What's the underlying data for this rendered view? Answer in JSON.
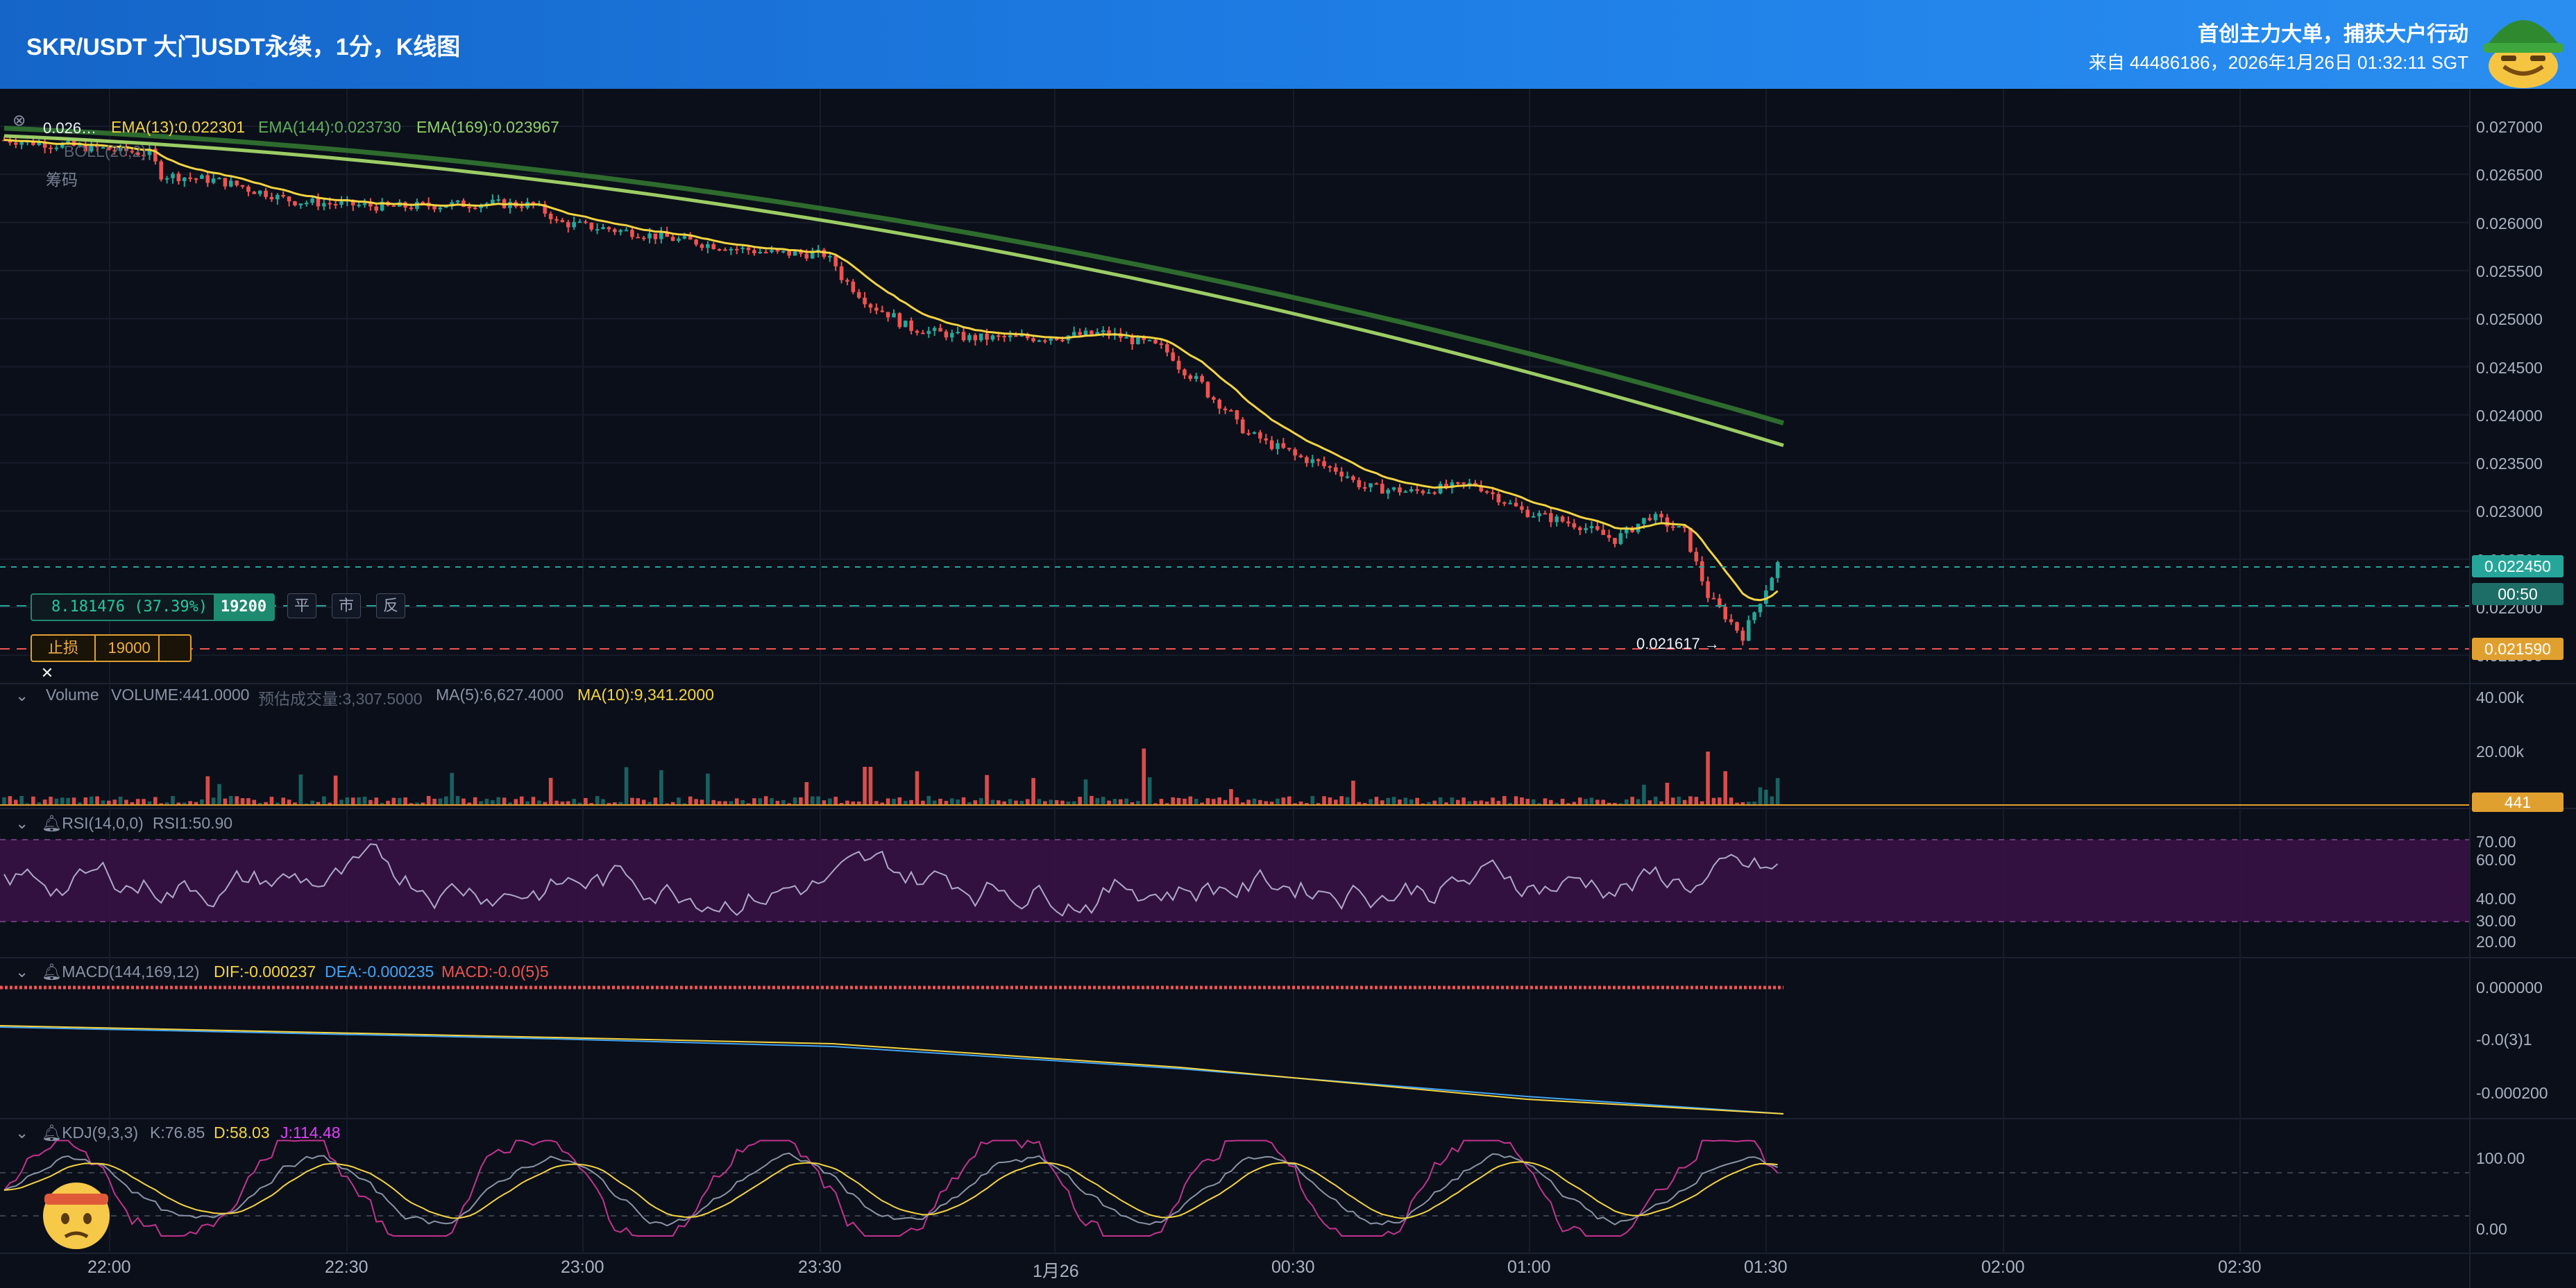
{
  "header": {
    "title": "SKR/USDT 大门USDT永续，1分，K线图",
    "tagline": "首创主力大单，捕获大户行动",
    "source": "来自 44486186，2026年1月26日 01:32:11 SGT"
  },
  "main_panel": {
    "ema_label": "EMA(13):0.022301",
    "ema144_label": "EMA(144):0.023730",
    "ema169_label": "EMA(169):0.023967",
    "boll_label": "BOLL(20,2)",
    "chips_label": "筹码",
    "last_price_tag": "0.022450",
    "countdown_tag": "00:50",
    "stoploss_price_tag": "0.021590",
    "low_marker": "0.021617",
    "high_marker": "0.026…",
    "price_axis": [
      "0.027000",
      "0.026500",
      "0.026000",
      "0.025500",
      "0.025000",
      "0.024500",
      "0.024000",
      "0.023500",
      "0.023000",
      "0.022500",
      "0.022000",
      "0.021500"
    ]
  },
  "order_line": {
    "pnl": "8.181476 (37.39%)",
    "qty": "19200",
    "buttons": [
      "平",
      "市",
      "反"
    ]
  },
  "stoploss": {
    "label": "止损",
    "qty": "19000",
    "close_icon": "close-icon"
  },
  "volume_panel": {
    "title": "Volume",
    "volume": "VOLUME:441.0000",
    "est": "预估成交量:3,307.5000",
    "ma5": "MA(5):6,627.4000",
    "ma10": "MA(10):9,341.2000",
    "axis": [
      "40.00k",
      "20.00k"
    ],
    "last_tag": "441"
  },
  "rsi_panel": {
    "title": "RSI(14,0,0)",
    "value": "RSI1:50.90",
    "axis": [
      "70.00",
      "60.00",
      "40.00",
      "30.00",
      "20.00"
    ]
  },
  "macd_panel": {
    "title": "MACD(144,169,12)",
    "dif": "DIF:-0.000237",
    "dea": "DEA:-0.000235",
    "macd": "MACD:-0.0(5)5",
    "axis": [
      "0.000000",
      "-0.0(3)1",
      "-0.000200"
    ]
  },
  "kdj_panel": {
    "title": "KDJ(9,3,3)",
    "k": "K:76.85",
    "d": "D:58.03",
    "j": "J:114.48",
    "axis": [
      "100.00",
      "0.00"
    ]
  },
  "time_axis": [
    "22:00",
    "22:30",
    "23:00",
    "23:30",
    "1月26",
    "00:30",
    "01:00",
    "01:30",
    "02:00",
    "02:30"
  ],
  "colors": {
    "up": "#26a69a",
    "down": "#ef5350",
    "ema13": "#f5d442",
    "ema144": "#2e7d32",
    "ema169": "#9ccc65",
    "accent": "#1e7ee6"
  },
  "chart_data": {
    "type": "candlestick",
    "ema13_last": 0.022301,
    "ema144_last": 0.02373,
    "ema169_last": 0.023967,
    "last_price": 0.02245,
    "low": 0.021617,
    "stop_loss": 0.02159,
    "ylim": [
      0.0215,
      0.0271
    ],
    "rsi_last": 50.9,
    "kdj": {
      "k": 76.85,
      "d": 58.03,
      "j": 114.48
    }
  }
}
